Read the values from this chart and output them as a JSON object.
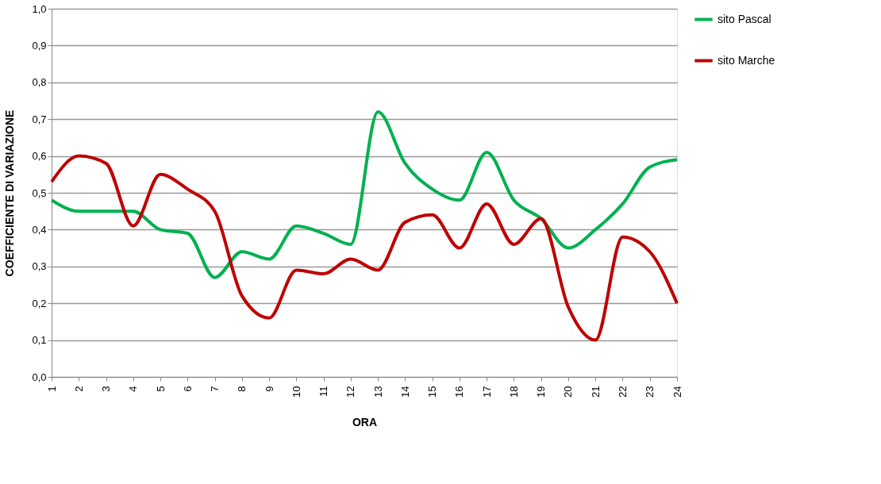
{
  "chart_data": {
    "type": "line",
    "xlabel": "ORA",
    "ylabel": "COEFFICIENTE  DI  VARIAZIONE",
    "categories": [
      "1",
      "2",
      "3",
      "4",
      "5",
      "6",
      "7",
      "8",
      "9",
      "10",
      "11",
      "12",
      "13",
      "14",
      "15",
      "16",
      "17",
      "18",
      "19",
      "20",
      "21",
      "22",
      "23",
      "24"
    ],
    "series": [
      {
        "name": "sito Pascal",
        "color": "#00b050",
        "values": [
          0.48,
          0.45,
          0.45,
          0.45,
          0.4,
          0.39,
          0.27,
          0.34,
          0.32,
          0.41,
          0.39,
          0.36,
          0.72,
          0.58,
          0.51,
          0.48,
          0.61,
          0.48,
          0.43,
          0.35,
          0.4,
          0.47,
          0.57,
          0.59
        ]
      },
      {
        "name": "sito Marche",
        "color": "#c00000",
        "values": [
          0.53,
          0.6,
          0.58,
          0.41,
          0.55,
          0.51,
          0.45,
          0.22,
          0.16,
          0.29,
          0.28,
          0.32,
          0.29,
          0.42,
          0.44,
          0.35,
          0.47,
          0.36,
          0.43,
          0.19,
          0.1,
          0.38,
          0.34,
          0.2
        ]
      }
    ],
    "ylim": [
      0,
      1
    ],
    "yticks": [
      {
        "value": 0,
        "label": "0,0"
      },
      {
        "value": 0.1,
        "label": "0,1"
      },
      {
        "value": 0.2,
        "label": "0,2"
      },
      {
        "value": 0.3,
        "label": "0,3"
      },
      {
        "value": 0.4,
        "label": "0,4"
      },
      {
        "value": 0.5,
        "label": "0,5"
      },
      {
        "value": 0.6,
        "label": "0,6"
      },
      {
        "value": 0.7,
        "label": "0,7"
      },
      {
        "value": 0.8,
        "label": "0,8"
      },
      {
        "value": 0.9,
        "label": "0,9"
      },
      {
        "value": 1,
        "label": "1,0"
      }
    ],
    "grid": "y",
    "legend": "right",
    "marker": "none",
    "line_style": "solid"
  }
}
